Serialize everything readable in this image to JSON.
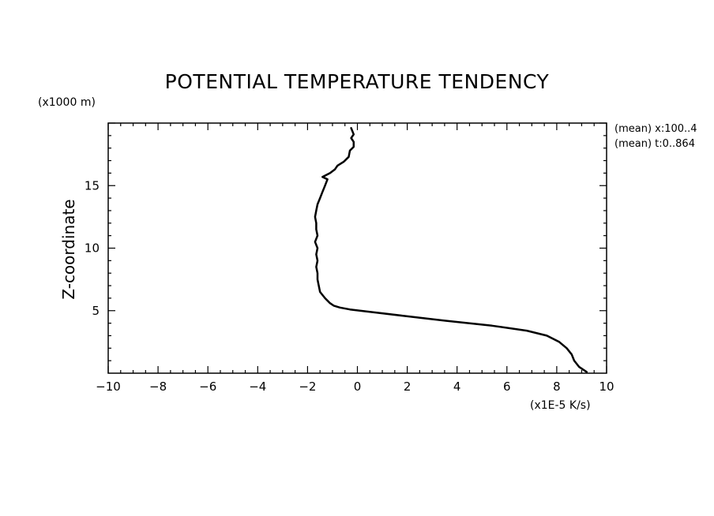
{
  "chart_data": {
    "type": "line",
    "title": "POTENTIAL TEMPERATURE TENDENCY",
    "xlabel": "",
    "x_unit": "(x1E-5 K/s)",
    "ylabel": "Z-coordinate",
    "y_unit": "(x1000 m)",
    "annotations": [
      "(mean) x:100..4",
      "(mean) t:0..864"
    ],
    "xlim": [
      -10,
      10
    ],
    "ylim": [
      0,
      20
    ],
    "x_ticks": [
      -10,
      -8,
      -6,
      -4,
      -2,
      0,
      2,
      4,
      6,
      8,
      10
    ],
    "y_ticks": [
      5,
      10,
      15
    ],
    "grid": false,
    "legend": "none",
    "line_color": "#000000",
    "series": [
      {
        "points": [
          {
            "x": 9.2,
            "y": 0.1
          },
          {
            "x": 8.9,
            "y": 0.5
          },
          {
            "x": 8.7,
            "y": 1.0
          },
          {
            "x": 8.6,
            "y": 1.5
          },
          {
            "x": 8.4,
            "y": 2.0
          },
          {
            "x": 8.1,
            "y": 2.5
          },
          {
            "x": 7.6,
            "y": 3.0
          },
          {
            "x": 6.8,
            "y": 3.4
          },
          {
            "x": 5.4,
            "y": 3.8
          },
          {
            "x": 3.5,
            "y": 4.2
          },
          {
            "x": 1.8,
            "y": 4.6
          },
          {
            "x": 0.5,
            "y": 4.9
          },
          {
            "x": -0.3,
            "y": 5.1
          },
          {
            "x": -0.7,
            "y": 5.25
          },
          {
            "x": -0.95,
            "y": 5.4
          },
          {
            "x": -1.1,
            "y": 5.6
          },
          {
            "x": -1.3,
            "y": 6.0
          },
          {
            "x": -1.5,
            "y": 6.5
          },
          {
            "x": -1.55,
            "y": 7.0
          },
          {
            "x": -1.6,
            "y": 7.5
          },
          {
            "x": -1.6,
            "y": 8.0
          },
          {
            "x": -1.65,
            "y": 8.5
          },
          {
            "x": -1.6,
            "y": 9.0
          },
          {
            "x": -1.65,
            "y": 9.5
          },
          {
            "x": -1.6,
            "y": 10.0
          },
          {
            "x": -1.7,
            "y": 10.5
          },
          {
            "x": -1.6,
            "y": 11.0
          },
          {
            "x": -1.65,
            "y": 11.5
          },
          {
            "x": -1.65,
            "y": 12.0
          },
          {
            "x": -1.7,
            "y": 12.5
          },
          {
            "x": -1.65,
            "y": 13.0
          },
          {
            "x": -1.6,
            "y": 13.5
          },
          {
            "x": -1.5,
            "y": 14.0
          },
          {
            "x": -1.4,
            "y": 14.5
          },
          {
            "x": -1.3,
            "y": 15.0
          },
          {
            "x": -1.2,
            "y": 15.5
          },
          {
            "x": -1.4,
            "y": 15.7
          },
          {
            "x": -1.1,
            "y": 16.0
          },
          {
            "x": -0.9,
            "y": 16.3
          },
          {
            "x": -0.8,
            "y": 16.6
          },
          {
            "x": -0.55,
            "y": 16.9
          },
          {
            "x": -0.35,
            "y": 17.3
          },
          {
            "x": -0.3,
            "y": 17.8
          },
          {
            "x": -0.15,
            "y": 18.1
          },
          {
            "x": -0.15,
            "y": 18.5
          },
          {
            "x": -0.25,
            "y": 18.8
          },
          {
            "x": -0.15,
            "y": 19.1
          },
          {
            "x": -0.25,
            "y": 19.6
          }
        ]
      }
    ]
  }
}
